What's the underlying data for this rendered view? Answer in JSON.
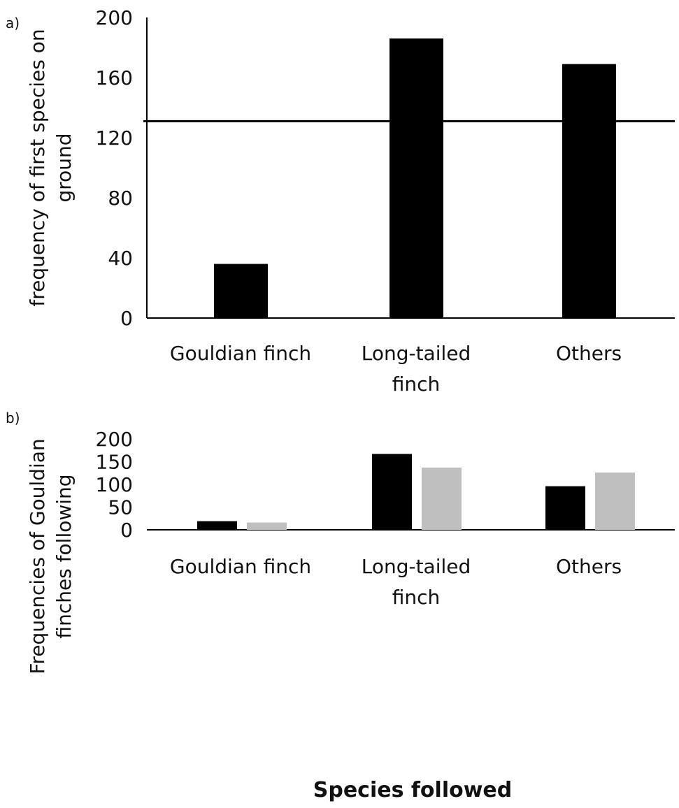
{
  "chart_data": [
    {
      "type": "bar",
      "panel_label": "a)",
      "categories": [
        [
          "Gouldian finch"
        ],
        [
          "Long-tailed",
          "finch"
        ],
        [
          "Others"
        ]
      ],
      "values": [
        36,
        186,
        169
      ],
      "reference_line": 131,
      "ylabel": [
        "frequency of first species on",
        "ground"
      ],
      "ylim": [
        0,
        200
      ],
      "yticks": [
        "0",
        "40",
        "80",
        "120",
        "160",
        "200"
      ],
      "colors": [
        "#000000"
      ],
      "grid": false
    },
    {
      "type": "bar",
      "panel_label": "b)",
      "categories": [
        [
          "Gouldian finch"
        ],
        [
          "Long-tailed",
          "finch"
        ],
        [
          "Others"
        ]
      ],
      "series": [
        {
          "values": [
            19,
            167,
            96
          ],
          "color": "#000000"
        },
        {
          "values": [
            16,
            137,
            126
          ],
          "color": "#bfbfbf"
        }
      ],
      "ylabel": [
        "Frequencies of Gouldian",
        "finches following"
      ],
      "xlabel": "Species followed",
      "ylim": [
        0,
        200
      ],
      "yticks": [
        "0",
        "50",
        "100",
        "150",
        "200"
      ],
      "grid": false
    }
  ]
}
